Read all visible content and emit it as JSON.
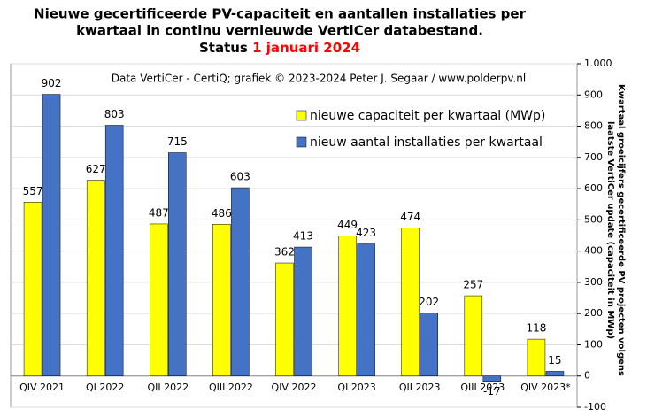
{
  "chart_data": {
    "type": "bar",
    "title": [
      "Nieuwe gecertificeerde PV-capaciteit en aantallen installaties per",
      "kwartaal in continu vernieuwde VertiCer databestand."
    ],
    "status_label": "Status",
    "status_date": "1 januari 2024",
    "annotation": "Data VertiCer - CertiQ; grafiek © 2023-2024 Peter J. Segaar / www.polderpv.nl",
    "y2_label": [
      "Kwartaal groeicijfers gecertificeerde PV projecten volgens",
      "laatste VertiCer update (capaciteit in MWp)"
    ],
    "categories": [
      "QIV 2021",
      "QI 2022",
      "QII 2022",
      "QIII 2022",
      "QIV 2022",
      "QI 2023",
      "QII 2023",
      "QIII 2023",
      "QIV 2023*"
    ],
    "series": [
      {
        "name": "nieuwe capaciteit per kwartaal (MWp)",
        "color": "#ffff00",
        "values": [
          557,
          627,
          487,
          486,
          362,
          449,
          474,
          257,
          118
        ]
      },
      {
        "name": "nieuw aantal installaties per kwartaal",
        "color": "#4472c4",
        "values": [
          902,
          803,
          715,
          603,
          413,
          423,
          202,
          -17,
          15
        ]
      }
    ],
    "ylim": [
      -100,
      1000
    ],
    "yticks": [
      -100,
      0,
      100,
      200,
      300,
      400,
      500,
      600,
      700,
      800,
      900,
      {
        "value": 1000,
        "label": "1.000"
      }
    ],
    "grid": true
  }
}
